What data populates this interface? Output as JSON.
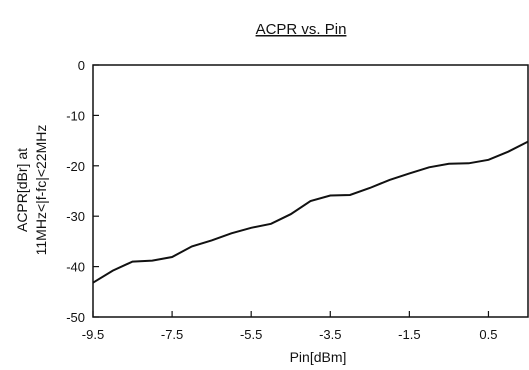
{
  "chart_data": {
    "type": "line",
    "title": "ACPR vs. Pin",
    "xlabel": "Pin[dBm]",
    "ylabel_lines": [
      "ACPR[dBr] at",
      "11MHz<|f-fc|<22MHz"
    ],
    "xlim": [
      -9.5,
      1.5
    ],
    "ylim": [
      -50,
      0
    ],
    "xticks": [
      -9.5,
      -7.5,
      -5.5,
      -3.5,
      -1.5,
      0.5
    ],
    "xtick_labels": [
      "-9.5",
      "-7.5",
      "-5.5",
      "-3.5",
      "-1.5",
      "0.5"
    ],
    "yticks": [
      0,
      -10,
      -20,
      -30,
      -40,
      -50
    ],
    "ytick_labels": [
      "0",
      "-10",
      "-20",
      "-30",
      "-40",
      "-50"
    ],
    "grid": false,
    "series": [
      {
        "color": "#111111",
        "x": [
          -9.5,
          -9.0,
          -8.5,
          -8.0,
          -7.5,
          -7.0,
          -6.5,
          -6.0,
          -5.5,
          -5.0,
          -4.5,
          -4.0,
          -3.5,
          -3.0,
          -2.5,
          -2.0,
          -1.5,
          -1.0,
          -0.5,
          0.0,
          0.5,
          1.0,
          1.5
        ],
        "y": [
          -43.2,
          -40.8,
          -39.0,
          -38.8,
          -38.1,
          -36.0,
          -34.8,
          -33.4,
          -32.3,
          -31.5,
          -29.6,
          -27.0,
          -25.9,
          -25.8,
          -24.4,
          -22.8,
          -21.5,
          -20.3,
          -19.6,
          -19.5,
          -18.8,
          -17.2,
          -15.2
        ]
      }
    ]
  }
}
